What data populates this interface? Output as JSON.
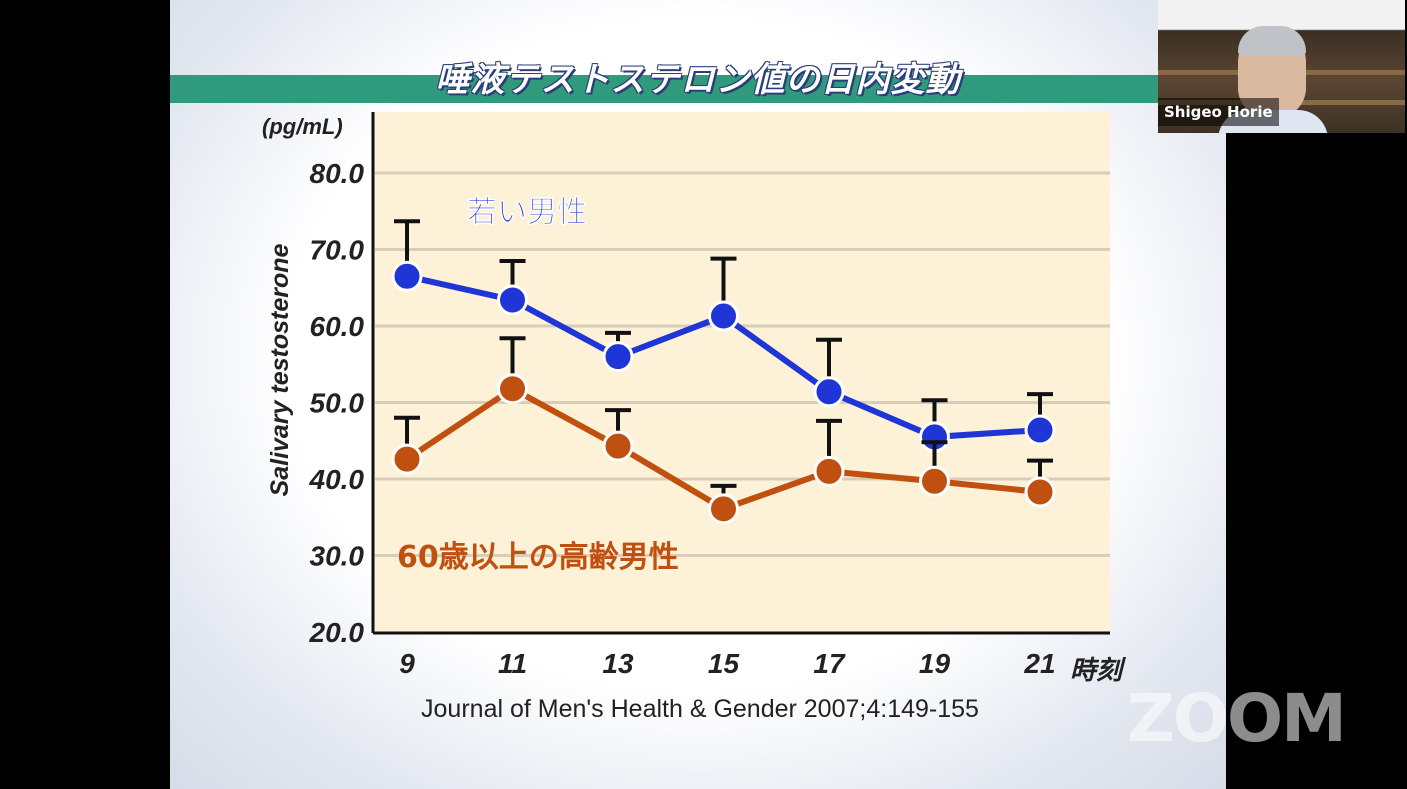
{
  "slide": {
    "title": "唾液テストステロン値の日内変動",
    "citation": "Journal of Men's Health & Gender 2007;4:149-155"
  },
  "video": {
    "participant_name": "Shigeo Horie"
  },
  "watermark": "ZOOM",
  "colors": {
    "young": "#1f35d6",
    "old": "#c0500f",
    "plot_bg": "#fdf1d8",
    "band": "#2f9b7c"
  },
  "chart_data": {
    "type": "line",
    "title": "唾液テストステロン値の日内変動",
    "xlabel": "時刻",
    "ylabel": "Salivary testosterone",
    "yunit": "(pg/mL)",
    "x": [
      9,
      11,
      13,
      15,
      17,
      19,
      21
    ],
    "xtick_labels": [
      "9",
      "11",
      "13",
      "15",
      "17",
      "19",
      "21"
    ],
    "ylim": [
      20,
      80
    ],
    "ytick_labels": [
      "20.0",
      "30.0",
      "40.0",
      "50.0",
      "60.0",
      "70.0",
      "80.0"
    ],
    "grid": true,
    "series": [
      {
        "name": "若い男性",
        "color": "#1f35d6",
        "values": [
          66.5,
          63.4,
          56.0,
          61.3,
          51.4,
          45.5,
          46.4
        ],
        "error_upper": [
          73.7,
          68.5,
          59.1,
          68.8,
          58.2,
          50.3,
          51.1
        ]
      },
      {
        "name": "60歳以上の高齢男性",
        "color": "#c0500f",
        "values": [
          42.6,
          51.8,
          44.3,
          36.1,
          41.0,
          39.7,
          38.3
        ],
        "error_upper": [
          48.0,
          58.4,
          49.0,
          39.1,
          47.6,
          44.8,
          42.4
        ]
      }
    ]
  }
}
